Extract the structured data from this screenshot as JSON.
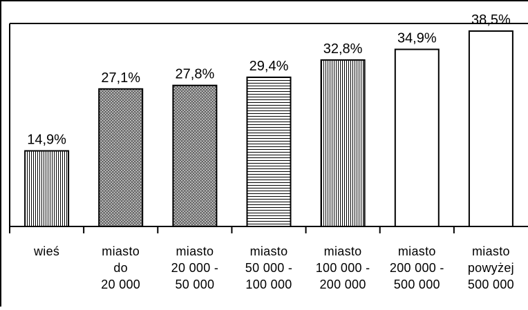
{
  "chart_data": {
    "type": "bar",
    "title": "",
    "xlabel": "",
    "ylabel": "",
    "ylim": [
      0,
      40
    ],
    "grid": false,
    "legend": "none",
    "value_format_suffix": "%",
    "categories": [
      [
        "wieś"
      ],
      [
        "miasto",
        "do",
        "20 000"
      ],
      [
        "miasto",
        "20 000 -",
        "50 000"
      ],
      [
        "miasto",
        "50 000 -",
        "100 000"
      ],
      [
        "miasto",
        "100 000 -",
        "200 000"
      ],
      [
        "miasto",
        "200 000 -",
        "500 000"
      ],
      [
        "miasto",
        "powyżej",
        "500 000"
      ]
    ],
    "values": [
      14.9,
      27.1,
      27.8,
      29.4,
      32.8,
      34.9,
      38.5
    ],
    "value_labels": [
      "14,9%",
      "27,1%",
      "27,8%",
      "29,4%",
      "32,8%",
      "34,9%",
      "38,5%"
    ],
    "bar_fills": [
      "vertical-stripes",
      "crosshatch",
      "crosshatch",
      "horizontal-stripes",
      "vertical-stripes",
      "white",
      "white"
    ],
    "colors": {
      "bar_stroke": "#000000",
      "background": "#ffffff"
    }
  }
}
